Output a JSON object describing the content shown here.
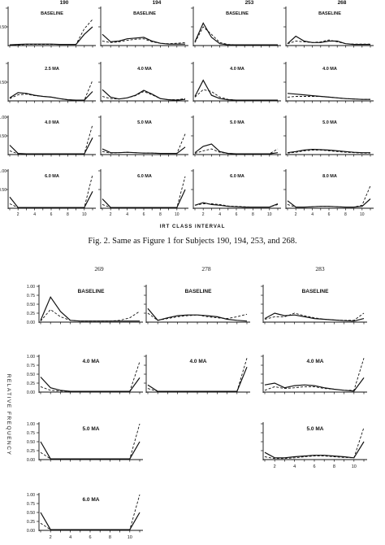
{
  "caption": "Fig. 2. Same as Figure 1 for Subjects 190, 194, 253, and 268.",
  "chart_data": [
    {
      "type": "line",
      "subjects": [
        "190",
        "194",
        "253",
        "268"
      ],
      "row_labels": [
        "BASELINE",
        "2.5 MA",
        "4.0 MA",
        "5.0 MA",
        "6.0 MA",
        "8.0 MA"
      ],
      "ylabel": "",
      "xlabel": "IRT CLASS INTERVAL",
      "x": [
        1,
        2,
        3,
        4,
        5,
        6,
        7,
        8,
        9,
        10,
        11
      ],
      "xticks": [
        2,
        4,
        6,
        8,
        10
      ],
      "yticks": [
        "0.50"
      ],
      "ytick_labels_by_row": [
        [
          "0.50"
        ],
        [
          "0.50"
        ],
        [
          "1.00",
          "0.50"
        ],
        [
          "1.00",
          "0.50"
        ]
      ],
      "ylim": [
        0,
        1.0
      ],
      "series_styles": [
        "solid",
        "dashed"
      ],
      "panels": [
        {
          "row": 0,
          "col": 0,
          "label": "BASELINE",
          "solid": [
            0.02,
            0.03,
            0.04,
            0.04,
            0.04,
            0.04,
            0.03,
            0.03,
            0.03,
            0.3,
            0.5
          ],
          "dashed": [
            0.02,
            0.02,
            0.03,
            0.03,
            0.03,
            0.03,
            0.03,
            0.03,
            0.03,
            0.45,
            0.7
          ]
        },
        {
          "row": 0,
          "col": 1,
          "label": "BASELINE",
          "solid": [
            0.3,
            0.1,
            0.12,
            0.18,
            0.2,
            0.22,
            0.12,
            0.06,
            0.04,
            0.04,
            0.04
          ],
          "dashed": [
            0.12,
            0.08,
            0.1,
            0.14,
            0.17,
            0.18,
            0.1,
            0.06,
            0.05,
            0.06,
            0.08
          ]
        },
        {
          "row": 0,
          "col": 2,
          "label": "BASELINE",
          "solid": [
            0.1,
            0.6,
            0.22,
            0.05,
            0.02,
            0.02,
            0.02,
            0.02,
            0.02,
            0.02,
            0.02
          ],
          "dashed": [
            0.08,
            0.5,
            0.3,
            0.08,
            0.03,
            0.02,
            0.02,
            0.02,
            0.02,
            0.02,
            0.02
          ]
        },
        {
          "row": 0,
          "col": 3,
          "label": "BASELINE",
          "solid": [
            0.05,
            0.25,
            0.12,
            0.08,
            0.08,
            0.12,
            0.12,
            0.05,
            0.03,
            0.03,
            0.03
          ],
          "dashed": [
            0.05,
            0.12,
            0.1,
            0.08,
            0.1,
            0.15,
            0.1,
            0.05,
            0.04,
            0.04,
            0.04
          ]
        },
        {
          "row": 1,
          "col": 0,
          "label": "2.5 MA",
          "solid": [
            0.08,
            0.22,
            0.2,
            0.15,
            0.12,
            0.1,
            0.06,
            0.03,
            0.02,
            0.02,
            0.25
          ],
          "dashed": [
            0.06,
            0.16,
            0.18,
            0.14,
            0.12,
            0.1,
            0.06,
            0.03,
            0.02,
            0.02,
            0.55
          ]
        },
        {
          "row": 1,
          "col": 1,
          "label": "4.0 MA",
          "solid": [
            0.3,
            0.1,
            0.05,
            0.08,
            0.15,
            0.28,
            0.18,
            0.06,
            0.03,
            0.02,
            0.04
          ],
          "dashed": [
            0.12,
            0.06,
            0.05,
            0.08,
            0.14,
            0.25,
            0.16,
            0.06,
            0.03,
            0.03,
            0.06
          ]
        },
        {
          "row": 1,
          "col": 2,
          "label": "4.0 MA",
          "solid": [
            0.12,
            0.55,
            0.15,
            0.06,
            0.03,
            0.02,
            0.02,
            0.02,
            0.02,
            0.02,
            0.02
          ],
          "dashed": [
            0.1,
            0.3,
            0.25,
            0.1,
            0.04,
            0.02,
            0.02,
            0.02,
            0.02,
            0.02,
            0.02
          ]
        },
        {
          "row": 1,
          "col": 3,
          "label": "4.0 MA",
          "solid": [
            0.2,
            0.18,
            0.16,
            0.14,
            0.12,
            0.1,
            0.08,
            0.06,
            0.05,
            0.04,
            0.04
          ],
          "dashed": [
            0.1,
            0.12,
            0.12,
            0.12,
            0.12,
            0.1,
            0.08,
            0.06,
            0.05,
            0.04,
            0.04
          ]
        },
        {
          "row": 2,
          "col": 0,
          "label": "4.0 MA",
          "solid": [
            0.25,
            0.03,
            0.02,
            0.02,
            0.02,
            0.02,
            0.02,
            0.02,
            0.02,
            0.02,
            0.45
          ],
          "dashed": [
            0.1,
            0.02,
            0.02,
            0.02,
            0.02,
            0.02,
            0.02,
            0.02,
            0.02,
            0.02,
            0.8
          ]
        },
        {
          "row": 2,
          "col": 1,
          "label": "5.0 MA",
          "solid": [
            0.15,
            0.05,
            0.05,
            0.06,
            0.05,
            0.04,
            0.04,
            0.03,
            0.03,
            0.03,
            0.2
          ],
          "dashed": [
            0.08,
            0.04,
            0.05,
            0.06,
            0.05,
            0.04,
            0.04,
            0.03,
            0.03,
            0.03,
            0.55
          ]
        },
        {
          "row": 2,
          "col": 2,
          "label": "5.0 MA",
          "solid": [
            0.05,
            0.22,
            0.28,
            0.08,
            0.03,
            0.02,
            0.02,
            0.02,
            0.02,
            0.02,
            0.05
          ],
          "dashed": [
            0.03,
            0.1,
            0.15,
            0.06,
            0.03,
            0.02,
            0.02,
            0.02,
            0.02,
            0.02,
            0.15
          ]
        },
        {
          "row": 2,
          "col": 3,
          "label": "5.0 MA",
          "solid": [
            0.05,
            0.08,
            0.12,
            0.14,
            0.13,
            0.12,
            0.1,
            0.08,
            0.06,
            0.05,
            0.05
          ],
          "dashed": [
            0.04,
            0.06,
            0.1,
            0.12,
            0.12,
            0.1,
            0.08,
            0.06,
            0.05,
            0.04,
            0.04
          ]
        },
        {
          "row": 3,
          "col": 0,
          "label": "6.0 MA",
          "solid": [
            0.3,
            0.02,
            0.02,
            0.02,
            0.02,
            0.02,
            0.02,
            0.02,
            0.02,
            0.02,
            0.45
          ],
          "dashed": [
            0.12,
            0.02,
            0.02,
            0.02,
            0.02,
            0.02,
            0.02,
            0.02,
            0.02,
            0.02,
            0.9
          ]
        },
        {
          "row": 3,
          "col": 1,
          "label": "6.0 MA",
          "solid": [
            0.25,
            0.02,
            0.02,
            0.02,
            0.02,
            0.02,
            0.02,
            0.02,
            0.02,
            0.02,
            0.5
          ],
          "dashed": [
            0.1,
            0.02,
            0.02,
            0.02,
            0.02,
            0.02,
            0.02,
            0.02,
            0.02,
            0.02,
            0.85
          ]
        },
        {
          "row": 3,
          "col": 2,
          "label": "6.0 MA",
          "solid": [
            0.08,
            0.15,
            0.1,
            0.08,
            0.05,
            0.04,
            0.03,
            0.03,
            0.03,
            0.03,
            0.12
          ],
          "dashed": [
            0.08,
            0.12,
            0.12,
            0.1,
            0.06,
            0.05,
            0.04,
            0.03,
            0.03,
            0.03,
            0.1
          ]
        },
        {
          "row": 3,
          "col": 3,
          "label": "8.0 MA",
          "solid": [
            0.2,
            0.03,
            0.03,
            0.04,
            0.05,
            0.05,
            0.04,
            0.03,
            0.03,
            0.05,
            0.25
          ],
          "dashed": [
            0.1,
            0.03,
            0.03,
            0.04,
            0.05,
            0.05,
            0.04,
            0.03,
            0.03,
            0.08,
            0.6
          ]
        }
      ]
    },
    {
      "type": "line",
      "subjects": [
        "269",
        "278",
        "283"
      ],
      "row_labels": [
        "BASELINE",
        "4.0 MA",
        "5.0 MA",
        "6.0 MA"
      ],
      "ylabel": "RELATIVE FREQUENCY",
      "xlabel": "",
      "x": [
        1,
        2,
        3,
        4,
        5,
        6,
        7,
        8,
        9,
        10,
        11
      ],
      "xticks": [
        2,
        4,
        6,
        8,
        10
      ],
      "yticks": [
        "0.00",
        "0.25",
        "0.50",
        "0.75",
        "1.00"
      ],
      "ylim": [
        0,
        1.0
      ],
      "series_styles": [
        "solid",
        "dashed"
      ],
      "panels": [
        {
          "row": 0,
          "col": 0,
          "label": "BASELINE",
          "solid": [
            0.05,
            0.7,
            0.3,
            0.05,
            0.03,
            0.03,
            0.03,
            0.03,
            0.03,
            0.03,
            0.03
          ],
          "dashed": [
            0.03,
            0.35,
            0.15,
            0.05,
            0.03,
            0.03,
            0.03,
            0.03,
            0.05,
            0.12,
            0.3
          ]
        },
        {
          "row": 0,
          "col": 1,
          "label": "BASELINE",
          "solid": [
            0.38,
            0.05,
            0.12,
            0.18,
            0.2,
            0.2,
            0.18,
            0.15,
            0.08,
            0.05,
            0.03
          ],
          "dashed": [
            0.25,
            0.05,
            0.1,
            0.15,
            0.18,
            0.2,
            0.15,
            0.12,
            0.1,
            0.15,
            0.22
          ]
        },
        {
          "row": 0,
          "col": 2,
          "label": "BASELINE",
          "solid": [
            0.1,
            0.25,
            0.18,
            0.2,
            0.15,
            0.1,
            0.08,
            0.06,
            0.04,
            0.03,
            0.1
          ],
          "dashed": [
            0.08,
            0.15,
            0.15,
            0.25,
            0.18,
            0.12,
            0.08,
            0.06,
            0.05,
            0.05,
            0.25
          ]
        },
        {
          "row": 1,
          "col": 0,
          "label": "4.0 MA",
          "solid": [
            0.42,
            0.12,
            0.05,
            0.02,
            0.02,
            0.02,
            0.02,
            0.02,
            0.02,
            0.02,
            0.4
          ],
          "dashed": [
            0.15,
            0.05,
            0.03,
            0.02,
            0.02,
            0.02,
            0.02,
            0.02,
            0.02,
            0.02,
            0.85
          ]
        },
        {
          "row": 1,
          "col": 1,
          "label": "4.0 MA",
          "solid": [
            0.2,
            0.02,
            0.02,
            0.02,
            0.02,
            0.02,
            0.02,
            0.02,
            0.02,
            0.02,
            0.7
          ],
          "dashed": [
            0.1,
            0.02,
            0.02,
            0.02,
            0.02,
            0.02,
            0.02,
            0.02,
            0.02,
            0.02,
            0.95
          ]
        },
        {
          "row": 1,
          "col": 2,
          "label": "4.0 MA",
          "solid": [
            0.2,
            0.25,
            0.12,
            0.18,
            0.2,
            0.18,
            0.12,
            0.08,
            0.05,
            0.03,
            0.4
          ],
          "dashed": [
            0.05,
            0.15,
            0.1,
            0.12,
            0.15,
            0.15,
            0.1,
            0.08,
            0.05,
            0.05,
            0.95
          ]
        },
        {
          "row": 2,
          "col": 0,
          "label": "5.0 MA",
          "solid": [
            0.5,
            0.02,
            0.02,
            0.02,
            0.02,
            0.02,
            0.02,
            0.02,
            0.02,
            0.02,
            0.5
          ],
          "dashed": [
            0.2,
            0.02,
            0.02,
            0.02,
            0.02,
            0.02,
            0.02,
            0.02,
            0.02,
            0.02,
            1.0
          ]
        },
        {
          "row": 2,
          "col": 2,
          "label": "5.0 MA",
          "solid": [
            0.2,
            0.05,
            0.05,
            0.08,
            0.1,
            0.12,
            0.12,
            0.1,
            0.08,
            0.05,
            0.5
          ],
          "dashed": [
            0.08,
            0.03,
            0.03,
            0.05,
            0.08,
            0.1,
            0.1,
            0.08,
            0.06,
            0.05,
            0.9
          ]
        },
        {
          "row": 3,
          "col": 0,
          "label": "6.0 MA",
          "solid": [
            0.5,
            0.02,
            0.02,
            0.02,
            0.02,
            0.02,
            0.02,
            0.02,
            0.02,
            0.02,
            0.5
          ],
          "dashed": [
            0.2,
            0.02,
            0.02,
            0.02,
            0.02,
            0.02,
            0.02,
            0.02,
            0.02,
            0.02,
            1.0
          ]
        }
      ]
    }
  ]
}
